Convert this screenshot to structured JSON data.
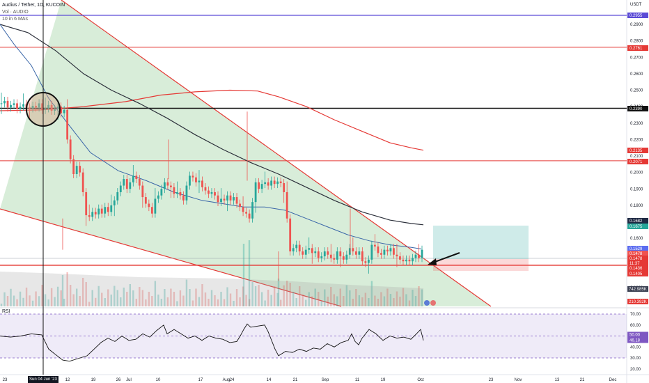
{
  "header": {
    "title": "Audius / Tether, 1D, KUCOIN",
    "volume_label": "Vol · AUDIO",
    "ma_label": "10 in 6 MAs"
  },
  "price_axis": {
    "currency": "USDT",
    "ticks": [
      "0.2900",
      "0.2800",
      "0.2700",
      "0.2600",
      "0.2500",
      "0.2400",
      "0.2300",
      "0.2200",
      "0.2100",
      "0.2000",
      "0.1900",
      "0.1800",
      "0.1700",
      "0.1600",
      "0.1500",
      "0.1400",
      "0.1300"
    ]
  },
  "price_badges": [
    {
      "text": "0.2955",
      "color": "#5b4bd6"
    },
    {
      "text": "0.2761",
      "color": "#e53935"
    },
    {
      "text": "0.2390",
      "color": "#111111"
    },
    {
      "text": "0.2135",
      "color": "#e53935"
    },
    {
      "text": "0.2071",
      "color": "#e53935"
    },
    {
      "text": "0.1682",
      "color": "#1f2a44"
    },
    {
      "text": "0.1675",
      "color": "#26a69a"
    },
    {
      "text": "0.1529",
      "color": "#5b6cf0"
    },
    {
      "text": "0.1478",
      "color": "#ef5350"
    },
    {
      "text": "0.1478",
      "color": "#e53935"
    },
    {
      "text": "11:37",
      "color": "#e53935"
    },
    {
      "text": "0.1436",
      "color": "#e53935"
    },
    {
      "text": "0.1405",
      "color": "#e53935"
    }
  ],
  "volume_badges": [
    {
      "text": "742.985K",
      "color": "#3b4052"
    },
    {
      "text": "210.392K",
      "color": "#e53935"
    }
  ],
  "rsi": {
    "label": "RSI",
    "ticks": [
      "70.00",
      "60.00",
      "50.00",
      "40.00",
      "30.00",
      "20.00"
    ],
    "badge_top": "50.00",
    "badge_bottom": "46.18",
    "badge_color": "#7e57c2"
  },
  "time_axis": {
    "labels": [
      "23",
      "12",
      "19",
      "26",
      "Jul",
      "10",
      "17",
      "24",
      "Aug",
      "14",
      "21",
      "Sep",
      "11",
      "19",
      "Oct",
      "23",
      "Nov",
      "13",
      "21",
      "Dec"
    ],
    "crosshair_label": "Sun 04 Jun '23"
  },
  "colors": {
    "up": "#26a69a",
    "down": "#ef5350",
    "wedge": "#4caf50",
    "ma_fast": "#3a66a8",
    "ma_slow": "#2b2f3a",
    "ma_long": "#e53935",
    "rsi_line": "#111111",
    "rsi_band": "#7e57c2"
  },
  "chart_data": {
    "type": "candlestick",
    "symbol": "Audius / Tether",
    "exchange": "KUCOIN",
    "interval": "1D",
    "ylim": [
      0.125,
      0.303
    ],
    "horizontal_levels": [
      0.2955,
      0.2761,
      0.239,
      0.2071,
      0.1436
    ],
    "trade_setup": {
      "entry": 0.1478,
      "target": 0.1675,
      "stop": 0.1405
    },
    "candles_close": [
      0.242,
      0.2435,
      0.2395,
      0.241,
      0.242,
      0.2385,
      0.24,
      0.2415,
      0.2395,
      0.239,
      0.2405,
      0.2395,
      0.242,
      0.238,
      0.239,
      0.241,
      0.2375,
      0.2385,
      0.24,
      0.236,
      0.238,
      0.22,
      0.208,
      0.199,
      0.204,
      0.2,
      0.188,
      0.174,
      0.173,
      0.176,
      0.1745,
      0.178,
      0.175,
      0.179,
      0.176,
      0.18,
      0.183,
      0.188,
      0.192,
      0.196,
      0.19,
      0.194,
      0.198,
      0.196,
      0.192,
      0.185,
      0.181,
      0.179,
      0.175,
      0.184,
      0.186,
      0.19,
      0.194,
      0.192,
      0.191,
      0.187,
      0.188,
      0.186,
      0.183,
      0.192,
      0.198,
      0.197,
      0.194,
      0.195,
      0.191,
      0.189,
      0.187,
      0.188,
      0.186,
      0.182,
      0.184,
      0.183,
      0.186,
      0.183,
      0.185,
      0.181,
      0.179,
      0.176,
      0.175,
      0.172,
      0.182,
      0.194,
      0.19,
      0.193,
      0.194,
      0.192,
      0.195,
      0.193,
      0.1945,
      0.1935,
      0.188,
      0.172,
      0.152,
      0.154,
      0.156,
      0.152,
      0.15,
      0.153,
      0.154,
      0.151,
      0.152,
      0.148,
      0.149,
      0.152,
      0.15,
      0.148,
      0.147,
      0.152,
      0.149,
      0.147,
      0.15,
      0.154,
      0.152,
      0.15,
      0.152,
      0.146,
      0.145,
      0.147,
      0.156,
      0.155,
      0.151,
      0.15,
      0.153,
      0.152,
      0.154,
      0.15,
      0.149,
      0.147,
      0.146,
      0.147,
      0.146,
      0.148,
      0.15,
      0.148,
      0.153
    ],
    "ma_fast": [
      [
        0,
        0.29
      ],
      [
        20,
        0.278
      ],
      [
        45,
        0.265
      ],
      [
        70,
        0.245
      ],
      [
        95,
        0.231
      ],
      [
        130,
        0.212
      ],
      [
        170,
        0.201
      ],
      [
        210,
        0.195
      ],
      [
        250,
        0.188
      ],
      [
        290,
        0.183
      ],
      [
        320,
        0.181
      ],
      [
        350,
        0.179
      ],
      [
        380,
        0.179
      ],
      [
        410,
        0.177
      ],
      [
        440,
        0.172
      ],
      [
        470,
        0.167
      ],
      [
        500,
        0.162
      ],
      [
        530,
        0.1585
      ],
      [
        560,
        0.156
      ],
      [
        590,
        0.1545
      ],
      [
        605,
        0.1535
      ]
    ],
    "ma_slow": [
      [
        0,
        0.29
      ],
      [
        40,
        0.285
      ],
      [
        80,
        0.274
      ],
      [
        120,
        0.26
      ],
      [
        160,
        0.25
      ],
      [
        200,
        0.242
      ],
      [
        240,
        0.233
      ],
      [
        280,
        0.223
      ],
      [
        320,
        0.214
      ],
      [
        360,
        0.206
      ],
      [
        400,
        0.199
      ],
      [
        440,
        0.191
      ],
      [
        480,
        0.183
      ],
      [
        520,
        0.176
      ],
      [
        560,
        0.171
      ],
      [
        590,
        0.169
      ],
      [
        608,
        0.1682
      ]
    ],
    "ma_long": [
      [
        0,
        0.2375
      ],
      [
        60,
        0.238
      ],
      [
        120,
        0.24
      ],
      [
        180,
        0.243
      ],
      [
        230,
        0.247
      ],
      [
        280,
        0.249
      ],
      [
        330,
        0.25
      ],
      [
        370,
        0.2495
      ],
      [
        400,
        0.246
      ],
      [
        440,
        0.24
      ],
      [
        480,
        0.232
      ],
      [
        520,
        0.225
      ],
      [
        560,
        0.218
      ],
      [
        590,
        0.215
      ],
      [
        608,
        0.2135
      ]
    ],
    "rsi_values": [
      [
        0,
        50
      ],
      [
        15,
        49
      ],
      [
        30,
        50
      ],
      [
        45,
        52
      ],
      [
        60,
        51
      ],
      [
        70,
        38
      ],
      [
        80,
        33
      ],
      [
        90,
        28
      ],
      [
        100,
        27
      ],
      [
        115,
        30
      ],
      [
        125,
        32
      ],
      [
        135,
        38
      ],
      [
        145,
        44
      ],
      [
        155,
        48
      ],
      [
        165,
        45
      ],
      [
        175,
        50
      ],
      [
        185,
        46
      ],
      [
        195,
        47
      ],
      [
        205,
        52
      ],
      [
        215,
        49
      ],
      [
        225,
        55
      ],
      [
        235,
        60
      ],
      [
        240,
        52
      ],
      [
        250,
        56
      ],
      [
        260,
        52
      ],
      [
        270,
        48
      ],
      [
        280,
        50
      ],
      [
        290,
        46
      ],
      [
        300,
        50
      ],
      [
        310,
        48
      ],
      [
        320,
        47
      ],
      [
        330,
        44
      ],
      [
        340,
        45
      ],
      [
        345,
        50
      ],
      [
        350,
        56
      ],
      [
        355,
        61
      ],
      [
        360,
        58
      ],
      [
        370,
        59
      ],
      [
        380,
        60
      ],
      [
        385,
        54
      ],
      [
        395,
        38
      ],
      [
        400,
        32
      ],
      [
        410,
        36
      ],
      [
        420,
        35
      ],
      [
        430,
        38
      ],
      [
        440,
        36
      ],
      [
        450,
        39
      ],
      [
        460,
        38
      ],
      [
        470,
        43
      ],
      [
        480,
        40
      ],
      [
        490,
        44
      ],
      [
        500,
        46
      ],
      [
        505,
        52
      ],
      [
        510,
        45
      ],
      [
        515,
        42
      ],
      [
        520,
        48
      ],
      [
        530,
        56
      ],
      [
        540,
        52
      ],
      [
        550,
        46
      ],
      [
        560,
        50
      ],
      [
        570,
        48
      ],
      [
        580,
        49
      ],
      [
        590,
        47
      ],
      [
        598,
        52
      ],
      [
        604,
        56
      ],
      [
        608,
        46
      ]
    ],
    "rsi_ylim": [
      15,
      72
    ],
    "rsi_overbought": 70,
    "rsi_oversold": 30
  }
}
